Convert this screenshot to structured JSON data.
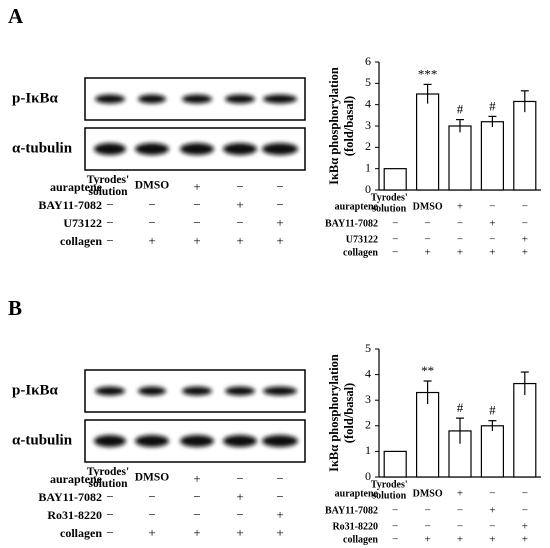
{
  "panels": [
    {
      "label": "A",
      "blots": [
        "p-IκBα",
        "α-tubulin"
      ],
      "lanes": [
        "Tyrodes' solution",
        "DMSO",
        null,
        null,
        null
      ],
      "treatments": [
        {
          "name": "auraptene",
          "signs": [
            null,
            null,
            "+",
            "−",
            "−"
          ]
        },
        {
          "name": "BAY11-7082",
          "signs": [
            "−",
            "−",
            "−",
            "+",
            "−"
          ]
        },
        {
          "name": "U73122",
          "signs": [
            "−",
            "−",
            "−",
            "−",
            "+"
          ]
        },
        {
          "name": "collagen",
          "signs": [
            "−",
            "+",
            "+",
            "+",
            "+"
          ]
        }
      ]
    },
    {
      "label": "B",
      "blots": [
        "p-IκBα",
        "α-tubulin"
      ],
      "lanes": [
        "Tyrodes' solution",
        "DMSO",
        null,
        null,
        null
      ],
      "treatments": [
        {
          "name": "auraptene",
          "signs": [
            null,
            null,
            "+",
            "−",
            "−"
          ]
        },
        {
          "name": "BAY11-7082",
          "signs": [
            "−",
            "−",
            "−",
            "+",
            "−"
          ]
        },
        {
          "name": "Ro31-8220",
          "signs": [
            "−",
            "−",
            "−",
            "−",
            "+"
          ]
        },
        {
          "name": "collagen",
          "signs": [
            "−",
            "+",
            "+",
            "+",
            "+"
          ]
        }
      ]
    }
  ],
  "chart_data": [
    {
      "type": "bar",
      "ylabel": [
        "IκBα phosphorylation",
        "(fold/basal)"
      ],
      "categories": [
        "Tyrodes' solution",
        "DMSO",
        null,
        null,
        null
      ],
      "values": [
        1,
        4.5,
        3.0,
        3.2,
        4.15
      ],
      "errors": [
        0,
        0.45,
        0.3,
        0.25,
        0.5
      ],
      "annotations": [
        null,
        "***",
        "#",
        "#",
        null
      ],
      "ylim": [
        0,
        6
      ],
      "yticks": [
        0,
        1,
        2,
        3,
        4,
        5,
        6
      ],
      "color": "#ffffff",
      "treatments": [
        {
          "name": "auraptene",
          "signs": [
            null,
            null,
            "+",
            "−",
            "−"
          ]
        },
        {
          "name": "BAY11-7082",
          "signs": [
            "−",
            "−",
            "−",
            "+",
            "−"
          ]
        },
        {
          "name": "U73122",
          "signs": [
            "−",
            "−",
            "−",
            "−",
            "+"
          ]
        },
        {
          "name": "collagen",
          "signs": [
            "−",
            "+",
            "+",
            "+",
            "+"
          ]
        }
      ]
    },
    {
      "type": "bar",
      "ylabel": [
        "IκBα phosphorylation",
        "(fold/basal)"
      ],
      "categories": [
        "Tyrodes' solution",
        "DMSO",
        null,
        null,
        null
      ],
      "values": [
        1,
        3.3,
        1.8,
        2.0,
        3.65
      ],
      "errors": [
        0,
        0.45,
        0.5,
        0.2,
        0.45
      ],
      "annotations": [
        null,
        "**",
        "#",
        "#",
        null
      ],
      "ylim": [
        0,
        5
      ],
      "yticks": [
        0,
        1,
        2,
        3,
        4,
        5
      ],
      "color": "#ffffff",
      "treatments": [
        {
          "name": "auraptene",
          "signs": [
            null,
            null,
            "+",
            "−",
            "−"
          ]
        },
        {
          "name": "BAY11-7082",
          "signs": [
            "−",
            "−",
            "−",
            "+",
            "−"
          ]
        },
        {
          "name": "Ro31-8220",
          "signs": [
            "−",
            "−",
            "−",
            "−",
            "+"
          ]
        },
        {
          "name": "collagen",
          "signs": [
            "−",
            "+",
            "+",
            "+",
            "+"
          ]
        }
      ]
    }
  ]
}
